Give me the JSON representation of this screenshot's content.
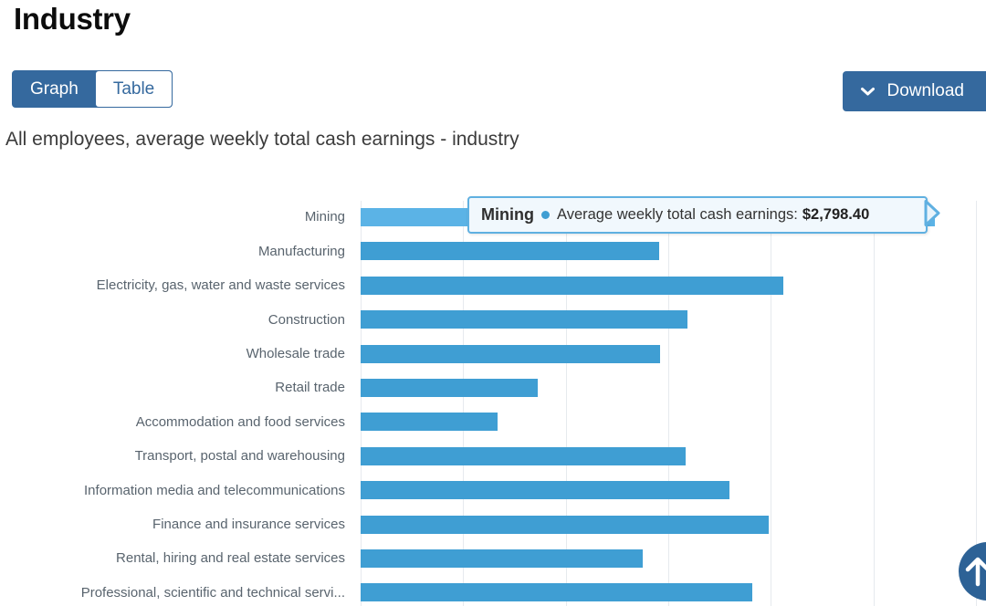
{
  "page": {
    "title": "Industry"
  },
  "toolbar": {
    "graph_label": "Graph",
    "table_label": "Table",
    "download_label": "Download"
  },
  "chart": {
    "title": "All employees, average weekly total cash earnings - industry",
    "tooltip": {
      "category": "Mining",
      "series_label": "Average weekly total cash earnings:",
      "value": "$2,798.40"
    }
  },
  "chart_data": {
    "type": "bar",
    "orientation": "horizontal",
    "title": "All employees, average weekly total cash earnings - industry",
    "categories": [
      "Mining",
      "Manufacturing",
      "Electricity, gas, water and waste services",
      "Construction",
      "Wholesale trade",
      "Retail trade",
      "Accommodation and food services",
      "Transport, postal and warehousing",
      "Information media and telecommunications",
      "Finance and insurance services",
      "Rental, hiring and real estate services",
      "Professional, scientific and technical servi..."
    ],
    "values": [
      2798.4,
      1455,
      2062,
      1595,
      1462,
      864,
      667,
      1585,
      1797,
      1988,
      1377,
      1909
    ],
    "series_name": "Average weekly total cash earnings",
    "xlabel": "",
    "ylabel": "",
    "xlim": [
      0,
      3050
    ],
    "gridline_interval": 500,
    "grid": true,
    "legend": false,
    "highlighted_category": "Mining",
    "highlight_tooltip_value": "$2,798.40",
    "note": "x axis labels cut off below the visible viewport"
  },
  "colors": {
    "accent_blue": "#35699e",
    "bar": "#3f9ed3",
    "bar_hover": "#5bb3e6",
    "tooltip_border": "#5fb0e1",
    "tooltip_bg": "#f1f8fd",
    "gridline": "#e6eaee",
    "label_gray": "#59646e",
    "scroll_button": "#2d6296"
  },
  "scroll_top": {
    "icon": "arrow-up"
  }
}
